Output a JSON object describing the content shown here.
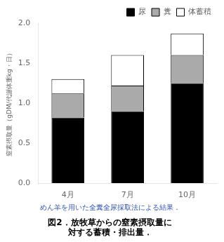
{
  "chart_data": {
    "type": "bar",
    "stacked": true,
    "title": [
      "図2．放牧草からの窒素摂取量に",
      "対する蓄積・排出量．"
    ],
    "subtitle": "めん羊を用いた全糞全尿採取法による結果．",
    "y_label": "窒素摂取量（gDM/代謝体重kg・日）",
    "categories": [
      "4月",
      "7月",
      "10月"
    ],
    "series": [
      {
        "name": "尿",
        "color": "#000000",
        "values": [
          0.82,
          0.9,
          1.25
        ]
      },
      {
        "name": "糞",
        "color": "#aaaaaa",
        "values": [
          0.3,
          0.32,
          0.35
        ]
      },
      {
        "name": "体蓄積",
        "color": "#ffffff",
        "values": [
          0.18,
          0.38,
          0.27
        ]
      }
    ],
    "ylim": [
      0.0,
      2.0
    ],
    "yticks": [
      {
        "value": 0,
        "label": "0.0"
      },
      0.5,
      {
        "value": 1,
        "label": "1.0"
      },
      1.5,
      {
        "value": 2,
        "label": "2.0"
      }
    ],
    "grid": false,
    "legend": "upper right"
  }
}
